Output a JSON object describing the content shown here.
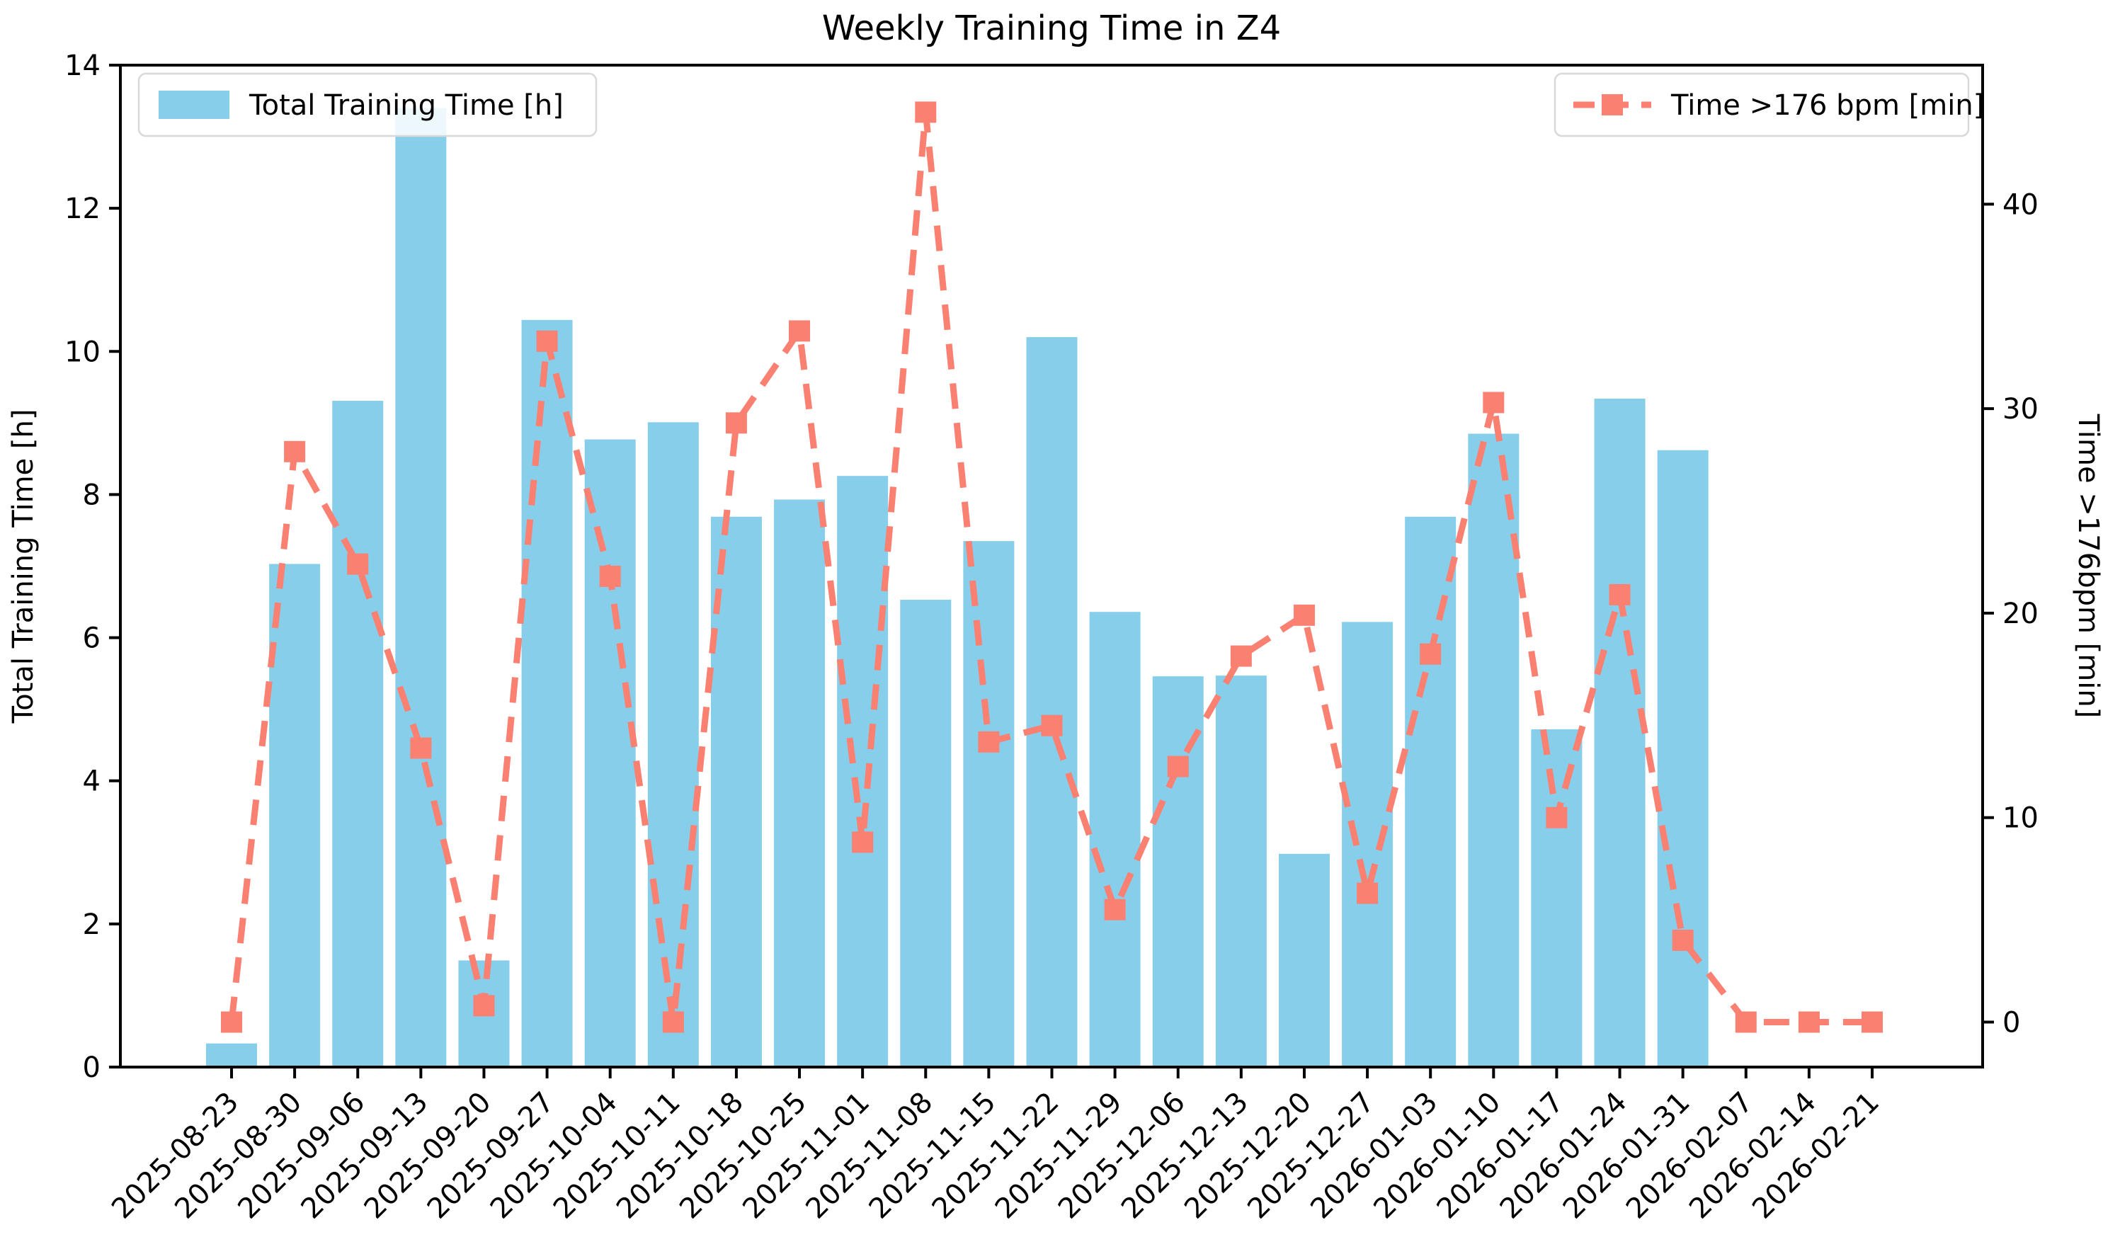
{
  "title": "Weekly Training Time in Z4",
  "chart_data": {
    "type": "bar",
    "subtype": "bar+line-dual-axis",
    "categories": [
      "2025-08-23",
      "2025-08-30",
      "2025-09-06",
      "2025-09-13",
      "2025-09-20",
      "2025-09-27",
      "2025-10-04",
      "2025-10-11",
      "2025-10-18",
      "2025-10-25",
      "2025-11-01",
      "2025-11-08",
      "2025-11-15",
      "2025-11-22",
      "2025-11-29",
      "2025-12-06",
      "2025-12-13",
      "2025-12-20",
      "2025-12-27",
      "2026-01-03",
      "2026-01-10",
      "2026-01-17",
      "2026-01-24",
      "2026-01-31",
      "2026-02-07",
      "2026-02-14",
      "2026-02-21"
    ],
    "series": [
      {
        "name": "Total Training Time [h]",
        "type": "bar",
        "axis": "left",
        "color": "#87CEEB",
        "values": [
          0.33,
          7.03,
          9.31,
          13.4,
          1.49,
          10.44,
          8.77,
          9.01,
          7.69,
          7.93,
          8.26,
          6.53,
          7.35,
          10.2,
          6.36,
          5.46,
          5.47,
          2.98,
          6.22,
          7.69,
          8.85,
          4.72,
          9.34,
          8.62,
          0,
          0,
          0
        ]
      },
      {
        "name": "Time >176 bpm [min]",
        "type": "line",
        "axis": "right",
        "color": "#FA8072",
        "linestyle": "dashed",
        "marker": "square",
        "values": [
          0,
          27.9,
          22.4,
          13.4,
          0.8,
          33.3,
          21.8,
          0,
          29.3,
          33.8,
          8.8,
          44.5,
          13.7,
          14.5,
          5.5,
          12.5,
          17.9,
          19.9,
          6.3,
          18,
          30.3,
          10,
          20.9,
          4,
          0,
          0,
          0
        ]
      }
    ],
    "left_axis": {
      "label": "Total Training Time [h]",
      "ticks": [
        0,
        2,
        4,
        6,
        8,
        10,
        12,
        14
      ],
      "lim": [
        0,
        14
      ]
    },
    "right_axis": {
      "label": "Time >176bpm [min]",
      "ticks": [
        0,
        10,
        20,
        30,
        40
      ],
      "lim": [
        -2.2,
        46.8
      ]
    },
    "legend": [
      {
        "label": "Total Training Time [h]",
        "position": "upper left"
      },
      {
        "label": "Time >176 bpm [min]",
        "position": "upper right"
      }
    ],
    "grid": false,
    "x_tick_rotation": 45,
    "background": "#ffffff",
    "spine_color": "#000000"
  }
}
